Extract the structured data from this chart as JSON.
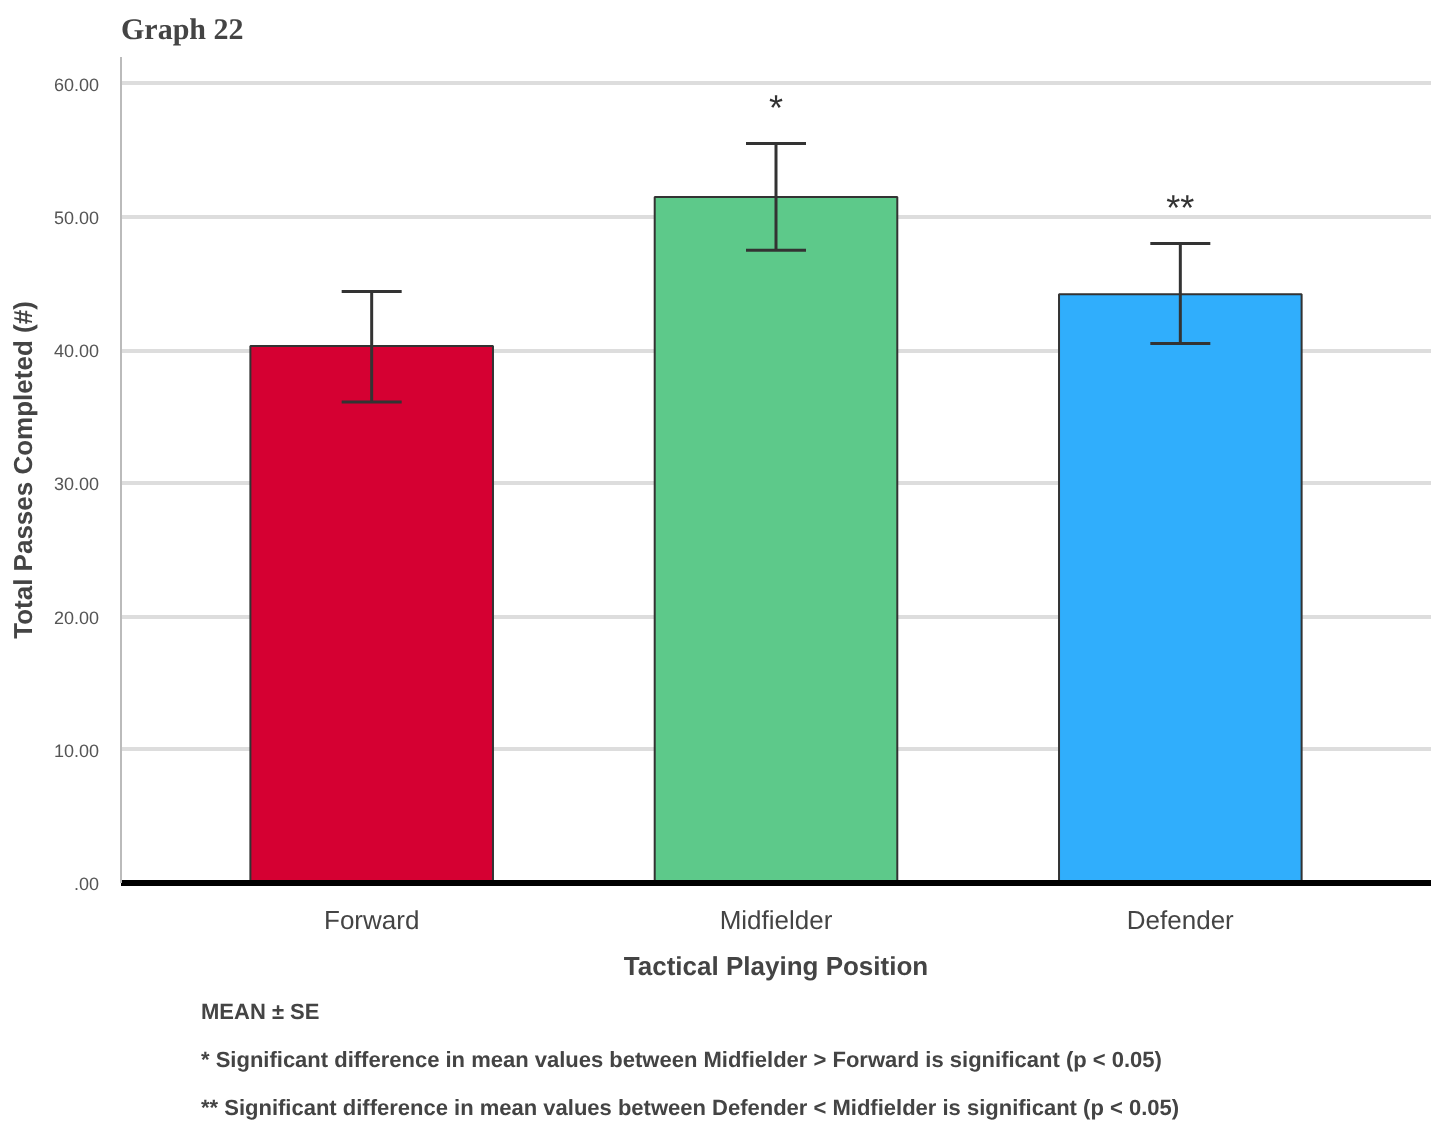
{
  "chart_data": {
    "type": "bar",
    "title": "Graph 22",
    "xlabel": "Tactical Playing Position",
    "ylabel": "Total Passes Completed (#)",
    "categories": [
      "Forward",
      "Midfielder",
      "Defender"
    ],
    "values": [
      40.3,
      51.5,
      44.2
    ],
    "colors": [
      "#d50032",
      "#5dc98a",
      "#30aefc"
    ],
    "errors": [
      [
        36.1,
        44.4
      ],
      [
        47.5,
        55.5
      ],
      [
        40.5,
        48.0
      ]
    ],
    "ylim": [
      0,
      62
    ],
    "yticks": [
      {
        "value": 0,
        "label": ".00"
      },
      {
        "value": 10,
        "label": "10.00"
      },
      {
        "value": 20,
        "label": "20.00"
      },
      {
        "value": 30,
        "label": "30.00"
      },
      {
        "value": 40,
        "label": "40.00"
      },
      {
        "value": 50,
        "label": "50.00"
      },
      {
        "value": 60,
        "label": "60.00"
      }
    ],
    "grid": "y",
    "annotations": [
      "*",
      "**",
      "MEAN ± SE",
      "* Significant difference in mean values  between Midfielder >  Forward is significant (p < 0.05)",
      "** Significant difference in mean values between Defender < Midfielder is significant (p < 0.05)"
    ]
  }
}
